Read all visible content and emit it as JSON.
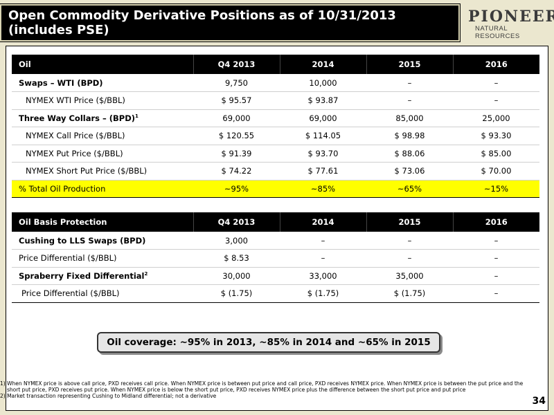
{
  "header": {
    "title": "Open Commodity Derivative Positions as of 10/31/2013 (includes PSE)",
    "logo_line1": "PIONEER",
    "logo_line2": "NATURAL RESOURCES"
  },
  "oil_table": {
    "columns": [
      "Oil",
      "Q4 2013",
      "2014",
      "2015",
      "2016"
    ],
    "rows": [
      {
        "label": "Swaps – WTI (BPD)",
        "values": [
          "9,750",
          "10,000",
          "–",
          "–"
        ]
      },
      {
        "label": "NYMEX WTI Price ($/BBL)",
        "values": [
          "$ 95.57",
          "$ 93.87",
          "–",
          "–"
        ]
      },
      {
        "label": "Three Way Collars – (BPD)",
        "footnote": "1",
        "values": [
          "69,000",
          "69,000",
          "85,000",
          "25,000"
        ]
      },
      {
        "label": "NYMEX Call Price ($/BBL)",
        "values": [
          "$ 120.55",
          "$ 114.05",
          "$ 98.98",
          "$ 93.30"
        ]
      },
      {
        "label": "NYMEX Put Price ($/BBL)",
        "values": [
          "$ 91.39",
          "$ 93.70",
          "$ 88.06",
          "$ 85.00"
        ]
      },
      {
        "label": "NYMEX Short Put Price ($/BBL)",
        "values": [
          "$ 74.22",
          "$ 77.61",
          "$ 73.06",
          "$ 70.00"
        ]
      },
      {
        "label": "% Total Oil Production",
        "values": [
          "~95%",
          "~85%",
          "~65%",
          "~15%"
        ]
      }
    ]
  },
  "basis_table": {
    "columns": [
      "Oil Basis Protection",
      "Q4 2013",
      "2014",
      "2015",
      "2016"
    ],
    "rows": [
      {
        "label": "Cushing to LLS Swaps (BPD)",
        "values": [
          "3,000",
          "–",
          "–",
          "–"
        ]
      },
      {
        "label": "Price Differential ($/BBL)",
        "values": [
          "$ 8.53",
          "–",
          "–",
          "–"
        ]
      },
      {
        "label": "Spraberry Fixed Differential",
        "footnote": "2",
        "values": [
          "30,000",
          "33,000",
          "35,000",
          "–"
        ]
      },
      {
        "label": "Price Differential ($/BBL)",
        "values": [
          "$ (1.75)",
          "$ (1.75)",
          "$ (1.75)",
          "–"
        ]
      }
    ]
  },
  "callout": "Oil coverage: ~95% in 2013, ~85% in 2014 and ~65% in 2015",
  "footnotes": [
    "1) When NYMEX price is above call price, PXD receives call price.  When NYMEX price is between put price and call price, PXD receives NYMEX price.  When NYMEX price is between the put price and the short put price, PXD receives put price.  When NYMEX price is below the short put price, PXD receives NYMEX price plus the difference between the short put price and put price",
    "2) Market transaction representing Cushing to Midland differential; not a derivative"
  ],
  "page_number": "34"
}
